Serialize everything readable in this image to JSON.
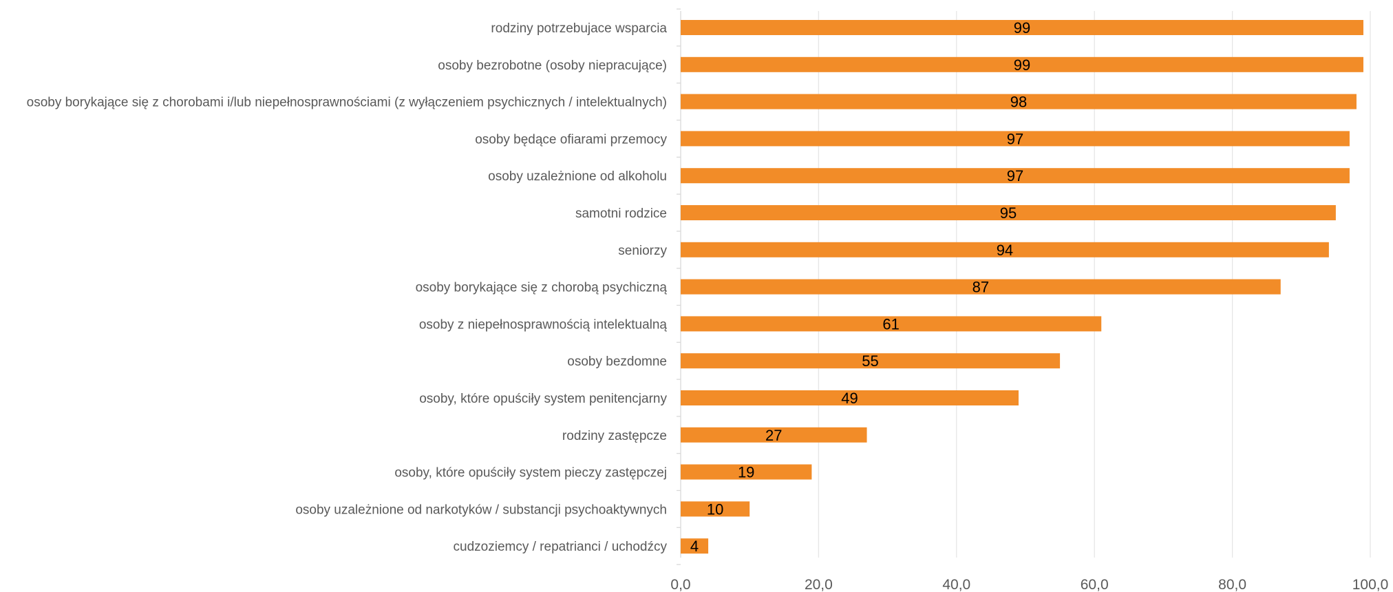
{
  "chart_data": {
    "type": "bar",
    "orientation": "horizontal",
    "title": "",
    "xlabel": "",
    "ylabel": "",
    "xlim": [
      0,
      100
    ],
    "x_ticks": [
      "0,0",
      "20,0",
      "40,0",
      "60,0",
      "80,0",
      "100,0"
    ],
    "grid": true,
    "legend": "none",
    "bar_color": "#f28c28",
    "categories": [
      "rodziny potrzebujace wsparcia",
      "osoby bezrobotne (osoby niepracujące)",
      "osoby borykające się z chorobami i/lub niepełnosprawnościami (z wyłączeniem psychicznych / intelektualnych)",
      "osoby będące ofiarami przemocy",
      "osoby uzależnione od alkoholu",
      "samotni rodzice",
      "seniorzy",
      "osoby borykające się z chorobą psychiczną",
      "osoby z niepełnosprawnością intelektualną",
      "osoby bezdomne",
      "osoby, które opuściły system penitencjarny",
      "rodziny zastępcze",
      "osoby, które opuściły system pieczy zastępczej",
      "osoby uzależnione od narkotyków / substancji psychoaktywnych",
      "cudzoziemcy / repatrianci / uchodźcy"
    ],
    "values": [
      99,
      99,
      98,
      97,
      97,
      95,
      94,
      87,
      61,
      55,
      49,
      27,
      19,
      10,
      4
    ]
  }
}
